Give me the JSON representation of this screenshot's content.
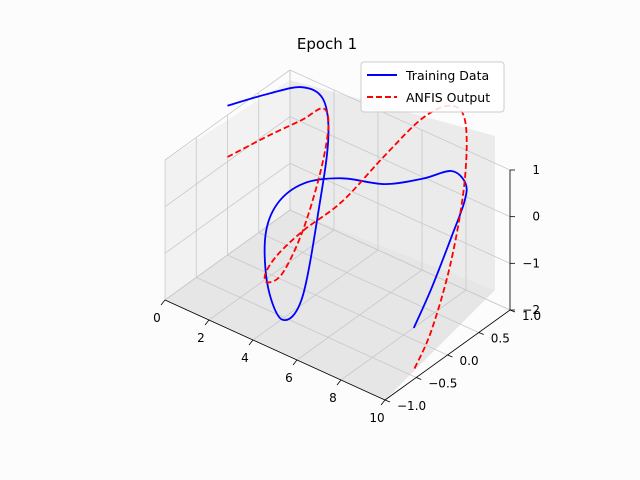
{
  "chart_data": {
    "type": "line",
    "projection": "3d",
    "title": "Epoch 1",
    "xlabel": "",
    "ylabel": "",
    "zlabel": "",
    "xlim": [
      0,
      10
    ],
    "ylim": [
      -1.0,
      1.0
    ],
    "zlim": [
      -2,
      1
    ],
    "x_ticks": [
      "0",
      "2",
      "4",
      "6",
      "8",
      "10"
    ],
    "y_ticks": [
      "−1.0",
      "−0.5",
      "0.0",
      "0.5",
      "1.0"
    ],
    "z_ticks": [
      "1",
      "0",
      "−1",
      "−2"
    ],
    "grid": true,
    "legend_position": "top-right",
    "series": [
      {
        "name": "Training Data",
        "color": "#0000ff",
        "linestyle": "solid",
        "x": [
          0.0,
          0.5,
          1.0,
          1.5,
          2.0,
          2.5,
          3.0,
          3.5,
          4.0,
          4.5,
          5.0,
          5.5,
          6.0,
          6.5,
          7.0,
          7.5,
          8.0,
          8.5,
          9.0,
          9.5,
          10.0
        ],
        "y": [
          0.0,
          0.48,
          0.84,
          1.0,
          0.91,
          0.6,
          0.14,
          -0.35,
          -0.76,
          -0.98,
          -0.96,
          -0.71,
          -0.28,
          0.22,
          0.66,
          0.94,
          0.99,
          0.8,
          0.41,
          -0.08,
          -0.54
        ],
        "z": [
          1.2,
          1.1,
          1.0,
          0.7,
          0.1,
          -0.9,
          -2.4,
          -2.3,
          -1.1,
          0.3,
          1.1,
          1.4,
          1.2,
          0.7,
          0.5,
          0.5,
          0.3,
          0.2,
          -0.1,
          -0.6,
          -0.9
        ]
      },
      {
        "name": "ANFIS Output",
        "color": "#ff0000",
        "linestyle": "dashed",
        "x": [
          0.0,
          0.5,
          1.0,
          1.5,
          2.0,
          2.5,
          3.0,
          3.5,
          4.0,
          4.5,
          5.0,
          5.5,
          6.0,
          6.5,
          7.0,
          7.5,
          8.0,
          8.5,
          9.0,
          9.5,
          10.0
        ],
        "y": [
          0.0,
          0.48,
          0.84,
          1.0,
          0.91,
          0.6,
          0.14,
          -0.35,
          -0.76,
          -0.98,
          -0.96,
          -0.71,
          -0.28,
          0.22,
          0.66,
          0.94,
          0.99,
          0.8,
          0.41,
          -0.08,
          -0.54
        ],
        "z": [
          0.1,
          0.2,
          0.3,
          0.5,
          0.3,
          -0.3,
          -1.0,
          -1.3,
          -1.0,
          -0.5,
          0.0,
          0.4,
          0.7,
          1.3,
          1.8,
          1.9,
          1.6,
          0.6,
          -0.6,
          -1.5,
          -1.8
        ]
      }
    ]
  }
}
